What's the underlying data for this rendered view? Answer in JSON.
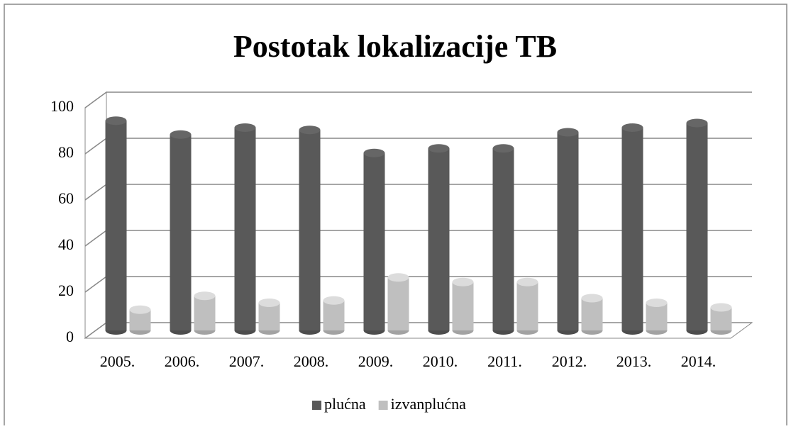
{
  "chart_data": {
    "type": "bar3d",
    "title": "Postotak lokalizacije TB",
    "categories": [
      "2005.",
      "2006.",
      "2007.",
      "2008.",
      "2009.",
      "2010.",
      "2011.",
      "2012.",
      "2013.",
      "2014."
    ],
    "series": [
      {
        "name": "plućna",
        "color": "#595959",
        "values": [
          91,
          85,
          88,
          87,
          77,
          79,
          79,
          86,
          88,
          90
        ]
      },
      {
        "name": "izvanplućna",
        "color": "#bfbfbf",
        "values": [
          9,
          15,
          12,
          13,
          23,
          21,
          21,
          14,
          12,
          10
        ]
      }
    ],
    "ylim": [
      0,
      100
    ],
    "yticks": [
      0,
      20,
      40,
      60,
      80,
      100
    ],
    "grid": true,
    "legend": "bottom"
  }
}
